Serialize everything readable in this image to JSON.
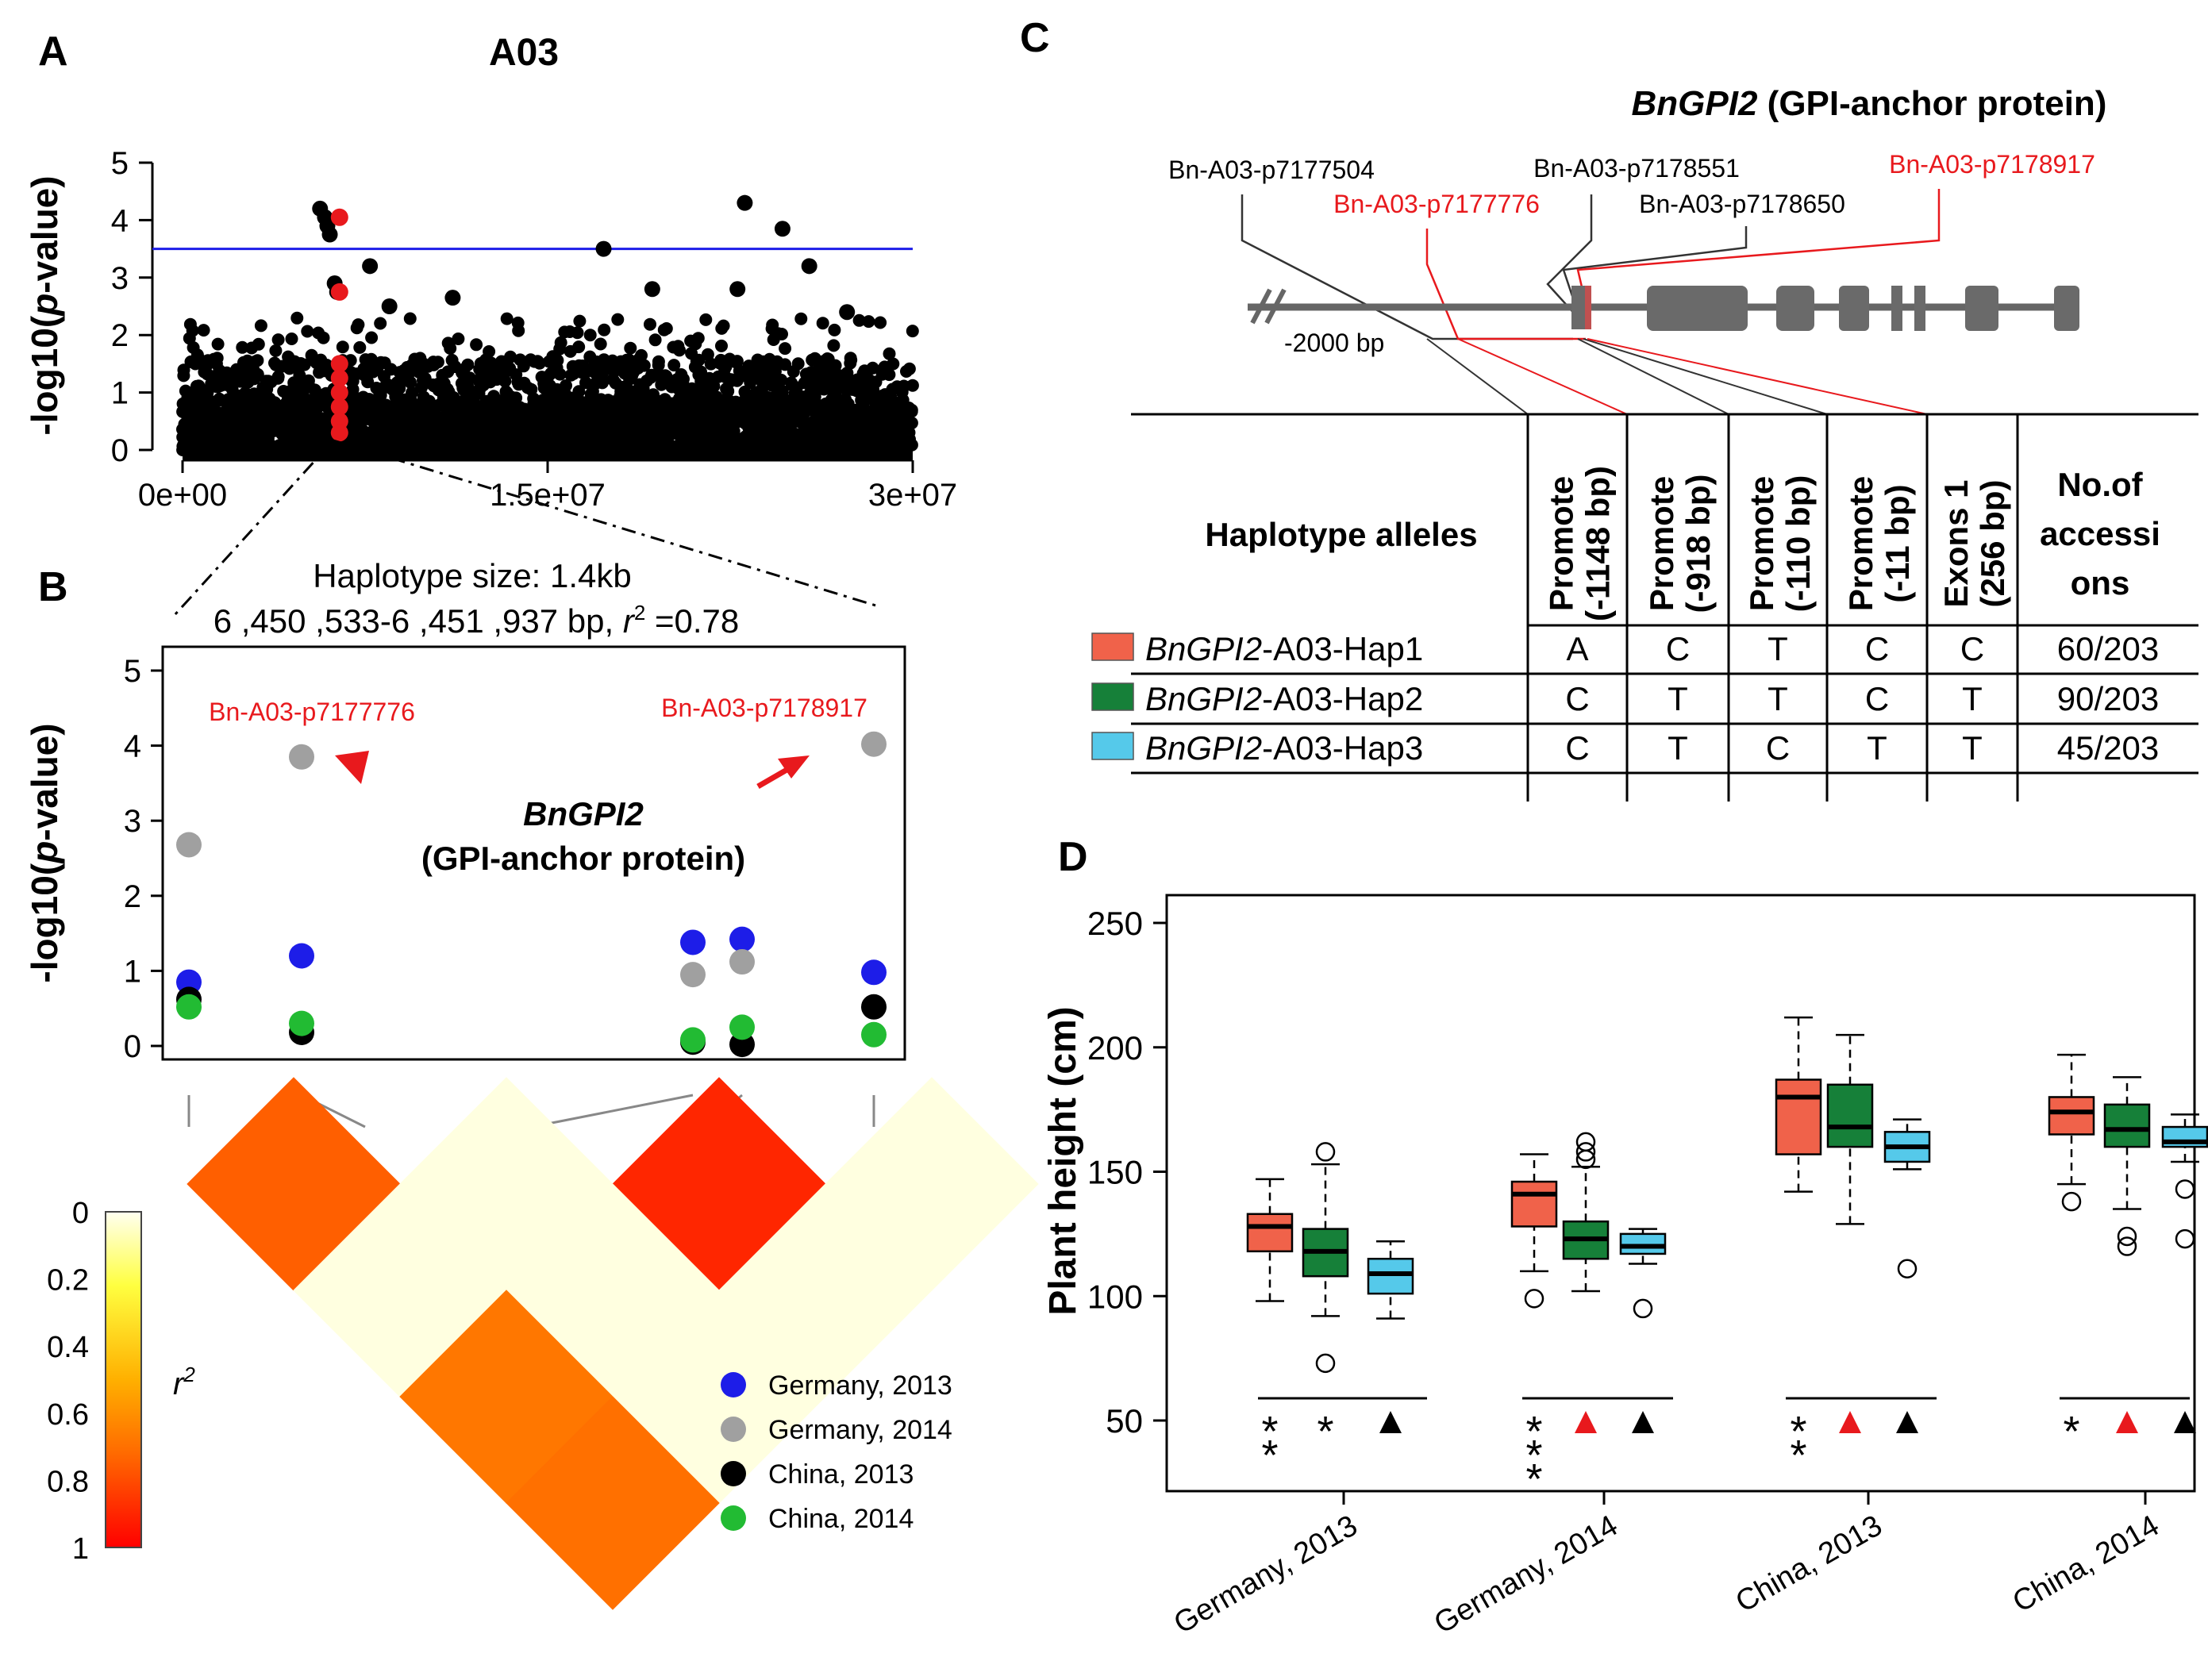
{
  "panel_labels": {
    "a": "A",
    "b": "B",
    "c": "C",
    "d": "D"
  },
  "colors": {
    "red": "#e8191d",
    "blue": "#1d1de8",
    "grey": "#a0a0a0",
    "black": "#000000",
    "green": "#22bb33",
    "hap1": "#f0624a",
    "hap2": "#168039",
    "hap3": "#55c9ea"
  },
  "chart_data": [
    {
      "id": "A",
      "type": "scatter",
      "title": "A03",
      "xlabel": "",
      "ylabel": "-log10(p-value)",
      "ylabel_parts": [
        "-log10(",
        "p",
        "-value)"
      ],
      "xlim": [
        0,
        30000000
      ],
      "ylim": [
        0,
        5
      ],
      "x_ticks": [
        0,
        15000000,
        30000000
      ],
      "x_tick_labels": [
        "0e+00",
        "1.5e+07",
        "3e+07"
      ],
      "y_ticks": [
        0,
        1,
        2,
        3,
        4,
        5
      ],
      "threshold": 3.5,
      "highlight_region": 6450000,
      "notable_points": [
        {
          "x": 5650000,
          "y": 4.2
        },
        {
          "x": 5850000,
          "y": 4.05
        },
        {
          "x": 5950000,
          "y": 3.9
        },
        {
          "x": 6050000,
          "y": 3.75
        },
        {
          "x": 6250000,
          "y": 2.9
        },
        {
          "x": 6350000,
          "y": 2.75
        },
        {
          "x": 7700000,
          "y": 3.2
        },
        {
          "x": 17300000,
          "y": 3.5
        },
        {
          "x": 23100000,
          "y": 4.3
        },
        {
          "x": 24650000,
          "y": 3.85
        },
        {
          "x": 25750000,
          "y": 3.2
        },
        {
          "x": 19300000,
          "y": 2.8
        },
        {
          "x": 22800000,
          "y": 2.8
        },
        {
          "x": 8500000,
          "y": 2.5
        },
        {
          "x": 11100000,
          "y": 2.65
        },
        {
          "x": 27300000,
          "y": 2.4
        }
      ],
      "red_points": [
        {
          "x": 6450000,
          "y": 4.05
        },
        {
          "x": 6450000,
          "y": 2.75
        },
        {
          "x": 6450000,
          "y": 1.5
        },
        {
          "x": 6450000,
          "y": 1.25
        },
        {
          "x": 6450000,
          "y": 1.0
        },
        {
          "x": 6450000,
          "y": 0.75
        },
        {
          "x": 6450000,
          "y": 0.5
        },
        {
          "x": 6450000,
          "y": 0.3
        }
      ]
    },
    {
      "id": "B",
      "type": "scatter",
      "title": "Haplotype size: 1.4kb",
      "subtitle_parts": [
        "6 ,450 ,533-6 ,451 ,937 bp,  ",
        "r",
        "2",
        " =0.78"
      ],
      "ylabel": "-log10(p-value)",
      "ylabel_parts": [
        "-log10(",
        "p",
        "-value)"
      ],
      "ylim": [
        0,
        5
      ],
      "y_ticks": [
        0,
        1,
        2,
        3,
        4,
        5
      ],
      "x": [
        1,
        2,
        3,
        4,
        5
      ],
      "gene_name": "BnGPI2",
      "gene_desc": "(GPI-anchor protein)",
      "annotations": [
        "Bn-A03-p7177776",
        "Bn-A03-p7178917"
      ],
      "series": [
        {
          "name": "Germany, 2013",
          "color": "#1d1de8",
          "values": [
            0.85,
            1.2,
            1.38,
            1.42,
            0.98
          ]
        },
        {
          "name": "Germany, 2014",
          "color": "#a0a0a0",
          "values": [
            2.68,
            3.85,
            0.95,
            1.12,
            4.02
          ]
        },
        {
          "name": "China, 2013",
          "color": "#000000",
          "values": [
            0.62,
            0.18,
            0.05,
            0.02,
            0.52
          ]
        },
        {
          "name": "China, 2014",
          "color": "#22bb33",
          "values": [
            0.52,
            0.3,
            0.08,
            0.25,
            0.15
          ]
        }
      ]
    },
    {
      "id": "B-LD",
      "type": "heatmap",
      "legend_label": "r2",
      "scale_ticks": [
        "0",
        "0.2",
        "0.4",
        "0.6",
        "0.8",
        "1"
      ],
      "ld_values": [
        0.75,
        0.02,
        0.9,
        0.02,
        0.02,
        0.02,
        0.02,
        0.68,
        0.02,
        0.7
      ]
    },
    {
      "id": "D",
      "type": "boxplot",
      "ylabel": "Plant height (cm)",
      "ylim": [
        50,
        250
      ],
      "y_ticks": [
        50,
        100,
        150,
        200,
        250
      ],
      "categories": [
        "Germany, 2013",
        "Germany, 2014",
        "China, 2013",
        "China, 2014"
      ],
      "series": [
        {
          "name": "Hap1",
          "color": "#f0624a",
          "boxes": [
            {
              "min": 98,
              "q1": 118,
              "med": 128,
              "q3": 133,
              "max": 147,
              "out": []
            },
            {
              "min": 110,
              "q1": 128,
              "med": 141,
              "q3": 146,
              "max": 157,
              "out": [
                99
              ]
            },
            {
              "min": 142,
              "q1": 157,
              "med": 180,
              "q3": 187,
              "max": 212,
              "out": []
            },
            {
              "min": 145,
              "q1": 165,
              "med": 174,
              "q3": 180,
              "max": 197,
              "out": [
                138
              ]
            }
          ]
        },
        {
          "name": "Hap2",
          "color": "#168039",
          "boxes": [
            {
              "min": 92,
              "q1": 108,
              "med": 118,
              "q3": 127,
              "max": 153,
              "out": [
                158,
                73
              ]
            },
            {
              "min": 102,
              "q1": 115,
              "med": 123,
              "q3": 130,
              "max": 152,
              "out": [
                155,
                158,
                162
              ]
            },
            {
              "min": 129,
              "q1": 160,
              "med": 168,
              "q3": 185,
              "max": 205,
              "out": []
            },
            {
              "min": 135,
              "q1": 160,
              "med": 167,
              "q3": 177,
              "max": 188,
              "out": [
                124,
                120
              ]
            }
          ]
        },
        {
          "name": "Hap3",
          "color": "#55c9ea",
          "boxes": [
            {
              "min": 91,
              "q1": 101,
              "med": 109,
              "q3": 115,
              "max": 122,
              "out": []
            },
            {
              "min": 113,
              "q1": 117,
              "med": 120,
              "q3": 125,
              "max": 127,
              "out": [
                95
              ]
            },
            {
              "min": 151,
              "q1": 154,
              "med": 160,
              "q3": 166,
              "max": 171,
              "out": [
                111
              ]
            },
            {
              "min": 154,
              "q1": 160,
              "med": 162,
              "q3": 168,
              "max": 173,
              "out": [
                143,
                123
              ]
            }
          ]
        }
      ],
      "significance": [
        [
          "**",
          "*",
          "tri-black"
        ],
        [
          "***",
          "tri-red",
          "tri-black"
        ],
        [
          "**",
          "tri-red",
          "tri-black"
        ],
        [
          "*",
          "tri-red",
          "tri-black"
        ]
      ]
    }
  ],
  "panel_c": {
    "gene_name": "BnGPI2",
    "gene_desc": " (GPI-anchor protein)",
    "snp_labels": [
      {
        "text": "Bn-A03-p7177504",
        "color": "#000000"
      },
      {
        "text": "Bn-A03-p7177776",
        "color": "#e8191d"
      },
      {
        "text": "Bn-A03-p7178551",
        "color": "#000000"
      },
      {
        "text": "Bn-A03-p7178650",
        "color": "#000000"
      },
      {
        "text": "Bn-A03-p7178917",
        "color": "#e8191d"
      }
    ],
    "scale_label": "-2000 bp",
    "table": {
      "header_first": "Haplotype alleles",
      "columns": [
        "Promote (-1148 bp)",
        "Promote (-918 bp)",
        "Promote (-110 bp)",
        "Promote (-11 bp)",
        "Exons 1 (256 bp)"
      ],
      "column_lines": [
        [
          "Promote",
          "(-1148 bp)"
        ],
        [
          "Promote",
          "(-918 bp)"
        ],
        [
          "Promote",
          "(-110 bp)"
        ],
        [
          "Promote",
          "(-11 bp)"
        ],
        [
          "Exons 1",
          "(256 bp)"
        ]
      ],
      "count_header_lines": [
        "No.of",
        "accessi",
        "ons"
      ],
      "rows": [
        {
          "gene": "BnGPI2",
          "suffix": "-A03-Hap1",
          "color": "#f0624a",
          "alleles": [
            "A",
            "C",
            "T",
            "C",
            "C"
          ],
          "count": "60/203"
        },
        {
          "gene": "BnGPI2",
          "suffix": "-A03-Hap2",
          "color": "#168039",
          "alleles": [
            "C",
            "T",
            "T",
            "C",
            "T"
          ],
          "count": "90/203"
        },
        {
          "gene": "BnGPI2",
          "suffix": "-A03-Hap3",
          "color": "#55c9ea",
          "alleles": [
            "C",
            "T",
            "C",
            "T",
            "T"
          ],
          "count": "45/203"
        }
      ]
    }
  }
}
